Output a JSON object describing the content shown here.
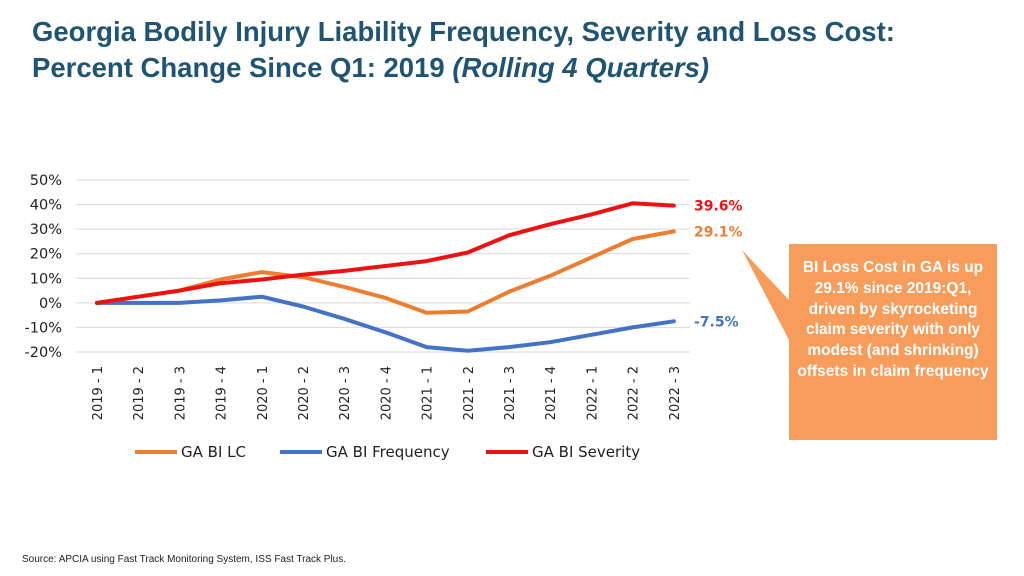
{
  "title": {
    "line1": "Georgia Bodily Injury Liability Frequency, Severity and Loss Cost:",
    "line2": "Percent Change Since Q1: 2019",
    "line2_italic": "(Rolling 4 Quarters)"
  },
  "callout": {
    "text": "BI Loss Cost in GA is up 29.1% since 2019:Q1, driven by skyrocketing claim severity with only modest (and shrinking) offsets in claim frequency",
    "color": "#f79c5a"
  },
  "source": "Source: APCIA using Fast Track Monitoring System, ISS Fast Track Plus.",
  "chart_data": {
    "type": "line",
    "title": "",
    "xlabel": "",
    "ylabel": "",
    "ylim": [
      -20,
      50
    ],
    "yticks": [
      50,
      40,
      30,
      20,
      10,
      0,
      -10,
      -20
    ],
    "ytick_labels": [
      "50%",
      "40%",
      "30%",
      "20%",
      "10%",
      "0%",
      "-10%",
      "-20%"
    ],
    "grid": true,
    "legend_position": "bottom",
    "categories": [
      "2019 - 1",
      "2019 - 2",
      "2019 - 3",
      "2019 - 4",
      "2020 - 1",
      "2020 - 2",
      "2020 - 3",
      "2020 - 4",
      "2021 - 1",
      "2021 - 2",
      "2021 - 3",
      "2021 - 4",
      "2022 - 1",
      "2022 - 2",
      "2022 - 3"
    ],
    "series": [
      {
        "name": "GA BI LC",
        "color": "#ed7d31",
        "values": [
          0,
          2.5,
          5,
          9.5,
          12.5,
          10.5,
          6.5,
          2,
          -4,
          -3.5,
          4.5,
          11,
          18.5,
          26,
          29.1
        ],
        "end_label": "29.1%"
      },
      {
        "name": "GA BI Frequency",
        "color": "#4472c4",
        "values": [
          0,
          0,
          0,
          1,
          2.5,
          -1.5,
          -6.5,
          -12,
          -18,
          -19.5,
          -18,
          -16,
          -13,
          -10,
          -7.5
        ],
        "end_label": "-7.5%"
      },
      {
        "name": "GA BI Severity",
        "color": "#ee1111",
        "values": [
          0,
          2.5,
          5,
          8,
          9.5,
          11.5,
          13,
          15,
          17,
          20.5,
          27.5,
          32,
          36,
          40.5,
          39.6
        ],
        "end_label": "39.6%"
      }
    ]
  }
}
